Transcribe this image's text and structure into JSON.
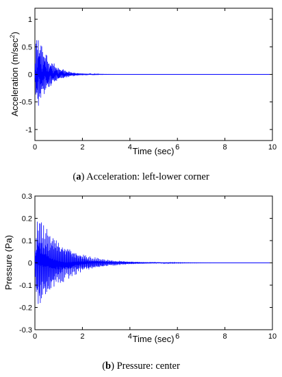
{
  "colors": {
    "signal": "#0000ff",
    "axis": "#000000",
    "background": "#ffffff"
  },
  "chart_data": [
    {
      "type": "line",
      "xlabel": "Time (sec)",
      "ylabel": "Acceleration (m/sec",
      "ylabel_exponent": "2",
      "ylabel_close": ")",
      "xlim": [
        0,
        10
      ],
      "ylim": [
        -1.2,
        1.2
      ],
      "xticks": [
        "0",
        "2",
        "4",
        "6",
        "8",
        "10"
      ],
      "yticks": [
        "-1",
        "-0.5",
        "0",
        "0.5",
        "1"
      ],
      "caption_letter": "a",
      "caption_text": " Acceleration: left-lower corner",
      "grid": false,
      "signal": {
        "description": "decaying oscillation",
        "peak_max": 1.05,
        "peak_min": -0.85,
        "decay_time_constant": 0.5,
        "frequency_hz": 20,
        "settled_by": 2.5
      }
    },
    {
      "type": "line",
      "xlabel": "Time (sec)",
      "ylabel": "Pressure (Pa)",
      "xlim": [
        0,
        10
      ],
      "ylim": [
        -0.3,
        0.3
      ],
      "xticks": [
        "0",
        "2",
        "4",
        "6",
        "8",
        "10"
      ],
      "yticks": [
        "-0.3",
        "-0.2",
        "-0.1",
        "0",
        "0.1",
        "0.2",
        "0.3"
      ],
      "caption_letter": "b",
      "caption_text": " Pressure: center",
      "grid": false,
      "signal": {
        "description": "decaying oscillation",
        "peak_max": 0.27,
        "peak_min": -0.26,
        "decay_time_constant": 1.1,
        "frequency_hz": 14,
        "settled_by": 4.5
      }
    }
  ]
}
